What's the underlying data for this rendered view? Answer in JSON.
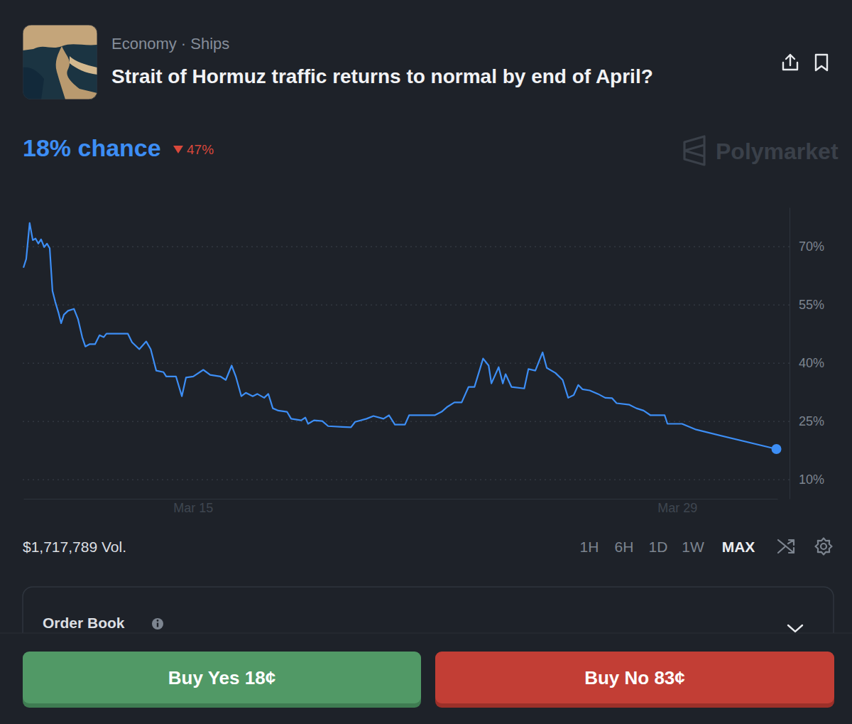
{
  "page": {
    "breadcrumb": "Economy · Ships",
    "headline": "18% chance",
    "change": "47%",
    "watermark": "Polymarket",
    "volume": "$1,717,789 Vol.",
    "ranges": [
      "1H",
      "6H",
      "1D",
      "1W",
      "MAX"
    ],
    "selected_range": "MAX",
    "order_book": "Order Book",
    "buy_yes": "Buy Yes 18¢",
    "buy_no": "Buy No 83¢"
  },
  "chart_data": {
    "type": "line",
    "title": "Strait of Hormuz traffic returns to normal by end of April?",
    "x": [
      10.1,
      10.18,
      10.28,
      10.37,
      10.45,
      10.53,
      10.61,
      10.7,
      10.78,
      10.86,
      10.94,
      11.02,
      11.11,
      11.19,
      11.27,
      11.39,
      11.56,
      11.68,
      11.8,
      11.89,
      12.01,
      12.17,
      12.3,
      12.42,
      12.5,
      13.12,
      13.24,
      13.45,
      13.65,
      13.78,
      13.94,
      14.15,
      14.23,
      14.51,
      14.68,
      14.8,
      15.01,
      15.3,
      15.5,
      15.79,
      15.95,
      16.12,
      16.24,
      16.4,
      16.53,
      16.73,
      16.86,
      17.06,
      17.18,
      17.31,
      17.47,
      17.72,
      17.84,
      18.13,
      18.25,
      18.33,
      18.5,
      18.74,
      18.91,
      19.32,
      19.57,
      19.69,
      20.02,
      20.22,
      20.51,
      20.67,
      20.84,
      21.13,
      21.25,
      21.99,
      22.19,
      22.36,
      22.56,
      22.77,
      22.97,
      23.14,
      23.39,
      23.55,
      23.63,
      23.84,
      23.96,
      24.04,
      24.21,
      24.58,
      24.7,
      24.9,
      25.11,
      25.23,
      25.48,
      25.69,
      25.85,
      26.01,
      26.14,
      26.26,
      26.47,
      26.71,
      26.92,
      27.12,
      27.25,
      27.62,
      27.82,
      28.03,
      28.23,
      28.64,
      28.72,
      29.14,
      29.55,
      31.87
    ],
    "series": [
      {
        "color": "#3d8ef5",
        "values": [
          64.5,
          66.7,
          76,
          71.6,
          72,
          70.7,
          71.8,
          69.8,
          70.7,
          69.5,
          58.5,
          55.7,
          53,
          50.2,
          52.4,
          53.4,
          53.9,
          51.2,
          46.6,
          44.2,
          44.8,
          44.8,
          47.1,
          46.6,
          47.5,
          47.5,
          45.3,
          43.5,
          45.5,
          43.5,
          38,
          37.6,
          36.5,
          36.5,
          31.4,
          36.2,
          36.5,
          38.2,
          36.9,
          36.5,
          35.6,
          39.3,
          36.5,
          31.4,
          32.3,
          31.4,
          32,
          31,
          32,
          28.3,
          27.7,
          27.4,
          25.6,
          25.2,
          25.9,
          24.3,
          25.2,
          25,
          23.7,
          23.5,
          23.4,
          24.8,
          25.6,
          26.3,
          25.6,
          26.5,
          24.1,
          24.1,
          26.5,
          26.5,
          27.4,
          28.7,
          29.8,
          29.8,
          33.8,
          33.8,
          41.1,
          39.3,
          34.7,
          38.9,
          34.7,
          37.1,
          33.8,
          33.4,
          38.4,
          38,
          42.7,
          38.7,
          37.4,
          35.6,
          31,
          31.7,
          34.3,
          33.2,
          32.9,
          32,
          31,
          30.9,
          29.6,
          29.2,
          28.3,
          27.7,
          26.5,
          26.5,
          24.3,
          24.3,
          22.8,
          17.8
        ]
      }
    ],
    "xlim": [
      10.1,
      31.9
    ],
    "ylim": [
      5,
      80
    ],
    "xticks": [
      {
        "value": 15,
        "label": "Mar 15"
      },
      {
        "value": 29,
        "label": "Mar 29"
      }
    ],
    "yticks": [
      {
        "value": 10,
        "label": "10%"
      },
      {
        "value": 25,
        "label": "25%"
      },
      {
        "value": 40,
        "label": "40%"
      },
      {
        "value": 55,
        "label": "55%"
      },
      {
        "value": 70,
        "label": "70%"
      }
    ],
    "grid": true
  }
}
